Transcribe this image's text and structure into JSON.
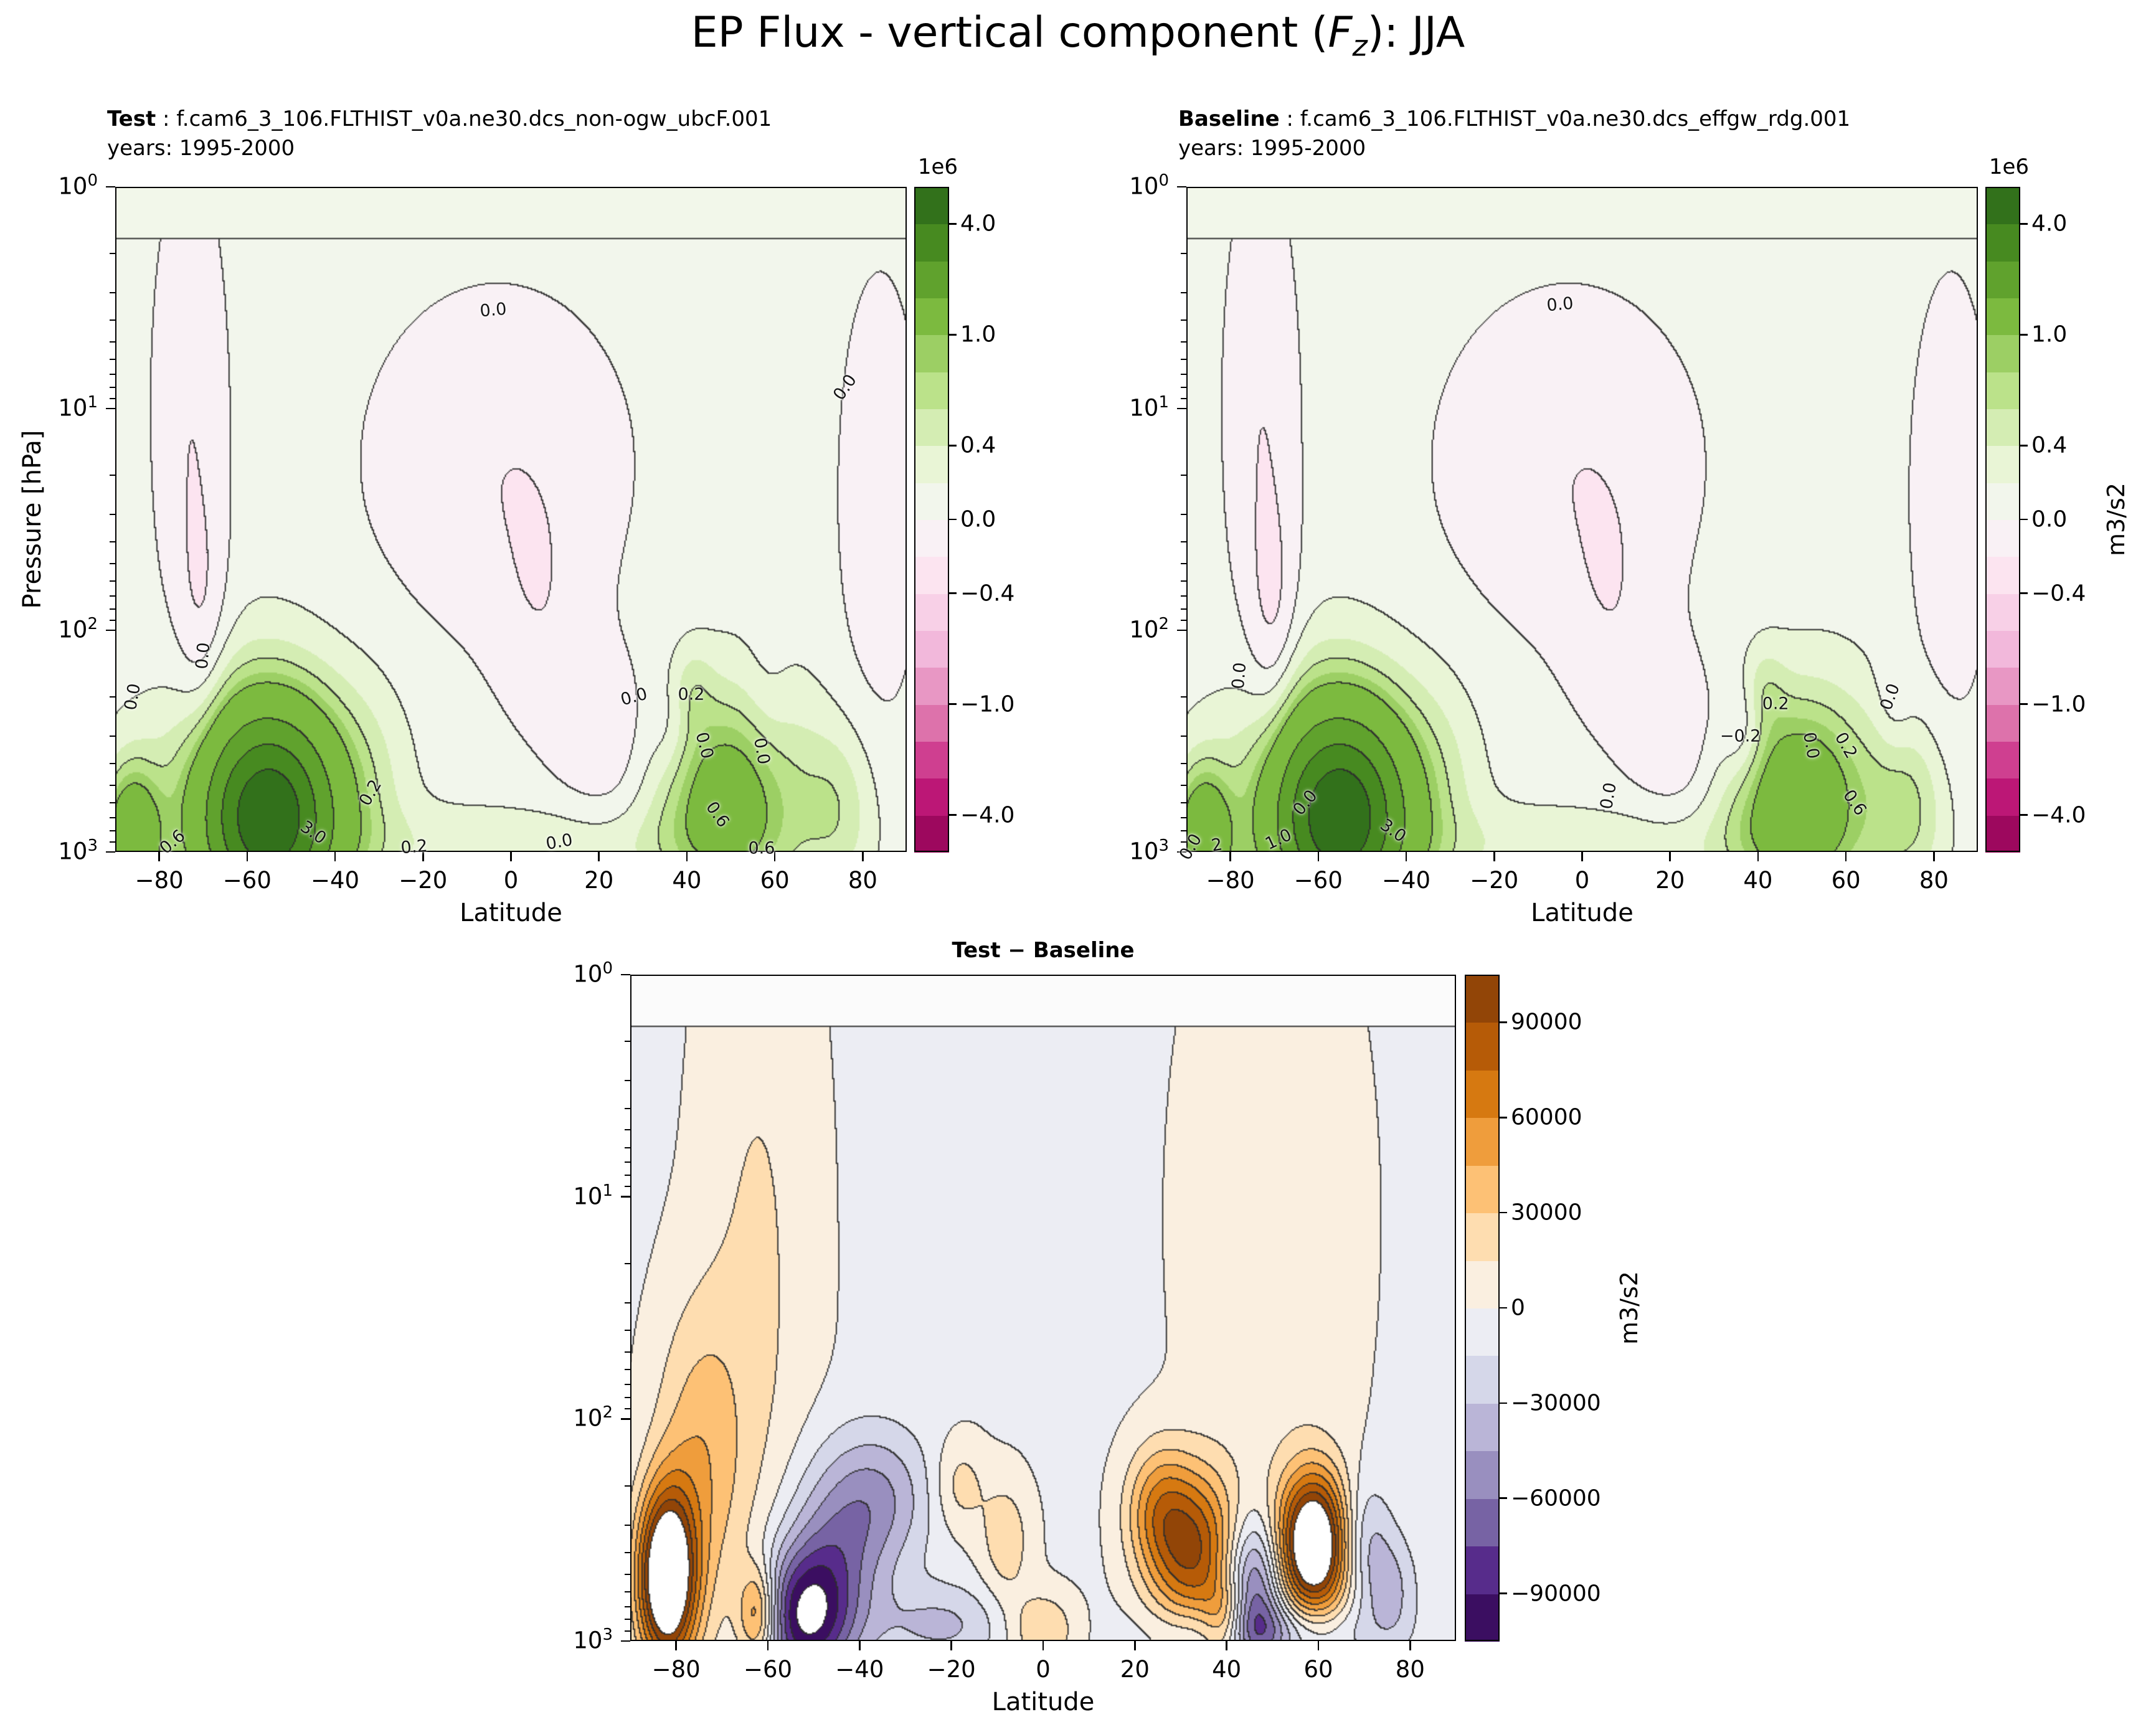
{
  "figure": {
    "title_pre": "EP Flux - vertical component (",
    "title_sym": "F",
    "title_sub": "z",
    "title_post": "): JJA"
  },
  "chart_data": [
    {
      "id": "test",
      "type": "contour",
      "title_bold": "Test",
      "title_rest": " : f.cam6_3_106.FLTHIST_v0a.ne30.dcs_non-ogw_ubcF.001",
      "title_line2": "years: 1995-2000",
      "xlabel": "Latitude",
      "ylabel": "Pressure [hPa]",
      "x_range": [
        -90,
        90
      ],
      "x_ticks": [
        -80,
        -60,
        -40,
        -20,
        0,
        20,
        40,
        60,
        80
      ],
      "x_tick_labels": [
        "−80",
        "−60",
        "−40",
        "−20",
        "0",
        "20",
        "40",
        "60",
        "80"
      ],
      "y_scale": "log",
      "y_tick_base": "10",
      "y_tick_exponents": [
        0,
        1,
        2,
        3
      ],
      "offset_label": "1e6",
      "colorbar_ticks": [
        {
          "v": 4000000,
          "label": "4.0"
        },
        {
          "v": 1000000,
          "label": "1.0"
        },
        {
          "v": 400000,
          "label": "0.4"
        },
        {
          "v": 0,
          "label": "0.0"
        },
        {
          "v": -400000,
          "label": "−0.4"
        },
        {
          "v": -1000000,
          "label": "−1.0"
        },
        {
          "v": -4000000,
          "label": "−4.0"
        }
      ],
      "levels": [
        -5000000,
        -4000000,
        -3000000,
        -2000000,
        -1000000,
        -800000,
        -600000,
        -400000,
        -200000,
        0,
        200000,
        400000,
        600000,
        800000,
        1000000,
        2000000,
        3000000,
        4000000,
        5000000
      ],
      "line_levels": [
        -200000,
        0,
        200000,
        600000,
        1000000,
        2000000,
        3000000,
        4000000
      ],
      "cmap_anchors": [
        "#8e0152",
        "#c51b7d",
        "#de77ae",
        "#f1b6da",
        "#fde0ef",
        "#f7f7f7",
        "#e6f5d0",
        "#b8e186",
        "#7fbc41",
        "#4d9221",
        "#276419"
      ],
      "out_of_range": "clamp",
      "background": 120000,
      "topband": {
        "logp": 0.235,
        "color": "#f2f7ea"
      },
      "blobs": [
        {
          "lat": -73,
          "lp": 1.0,
          "sl": 6.5,
          "sp": 0.85,
          "a": -300000
        },
        {
          "lat": -70,
          "lp": 2.1,
          "sl": 4,
          "sp": 0.45,
          "a": -260000
        },
        {
          "lat": -3,
          "lp": 1.25,
          "sl": 23,
          "sp": 0.6,
          "a": -300000
        },
        {
          "lat": 7,
          "lp": 2.0,
          "sl": 8,
          "sp": 0.4,
          "a": -170000
        },
        {
          "lat": 84,
          "lp": 1.4,
          "sl": 7,
          "sp": 0.75,
          "a": -300000
        },
        {
          "lat": 22,
          "lp": 2.5,
          "sl": 8,
          "sp": 0.28,
          "a": -280000
        },
        {
          "lat": 37,
          "lp": 2.45,
          "sl": 3.5,
          "sp": 0.18,
          "a": -200000
        },
        {
          "lat": 58,
          "lp": 2.4,
          "sl": 4,
          "sp": 0.25,
          "a": -160000
        },
        {
          "lat": -55,
          "lp": 2.85,
          "sl": 10,
          "sp": 0.3,
          "a": 4300000
        },
        {
          "lat": -57,
          "lp": 2.65,
          "sl": 15,
          "sp": 0.4,
          "a": 600000
        },
        {
          "lat": -86,
          "lp": 2.95,
          "sl": 4.5,
          "sp": 0.22,
          "a": 1500000
        },
        {
          "lat": 49,
          "lp": 2.8,
          "sl": 10,
          "sp": 0.28,
          "a": 1000000
        },
        {
          "lat": 52,
          "lp": 2.6,
          "sl": 13,
          "sp": 0.35,
          "a": 300000
        },
        {
          "lat": 41,
          "lp": 2.27,
          "sl": 3.5,
          "sp": 0.14,
          "a": 300000
        },
        {
          "lat": 74,
          "lp": 2.8,
          "sl": 6,
          "sp": 0.25,
          "a": 400000
        },
        {
          "lat": 5,
          "lp": 2.97,
          "sl": 35,
          "sp": 0.13,
          "a": 250000
        },
        {
          "lat": -32,
          "lp": 2.7,
          "sl": 7,
          "sp": 0.35,
          "a": 180000
        }
      ],
      "contour_labels": [
        {
          "text": "0.0",
          "lat": -4,
          "p": 3.6,
          "rot": -5
        },
        {
          "text": "0.0",
          "lat": 76,
          "p": 8,
          "rot": -55
        },
        {
          "text": "0.0",
          "lat": -70,
          "p": 130,
          "rot": -85
        },
        {
          "text": "0.0",
          "lat": -86,
          "p": 200,
          "rot": -80
        },
        {
          "text": "0.0",
          "lat": 28,
          "p": 200,
          "rot": -15
        },
        {
          "text": "0.0",
          "lat": 44,
          "p": 330,
          "rot": 75
        },
        {
          "text": "0.0",
          "lat": 57,
          "p": 350,
          "rot": 80
        },
        {
          "text": "0.2",
          "lat": -32,
          "p": 540,
          "rot": -60
        },
        {
          "text": "0.2",
          "lat": -22,
          "p": 950,
          "rot": -5
        },
        {
          "text": "3.0",
          "lat": -45,
          "p": 820,
          "rot": 35
        },
        {
          "text": "0.6",
          "lat": -77,
          "p": 900,
          "rot": -40
        },
        {
          "text": "0.2",
          "lat": 41,
          "p": 195,
          "rot": 0
        },
        {
          "text": "0.6",
          "lat": 47,
          "p": 680,
          "rot": 55
        },
        {
          "text": "0.0",
          "lat": 11,
          "p": 900,
          "rot": -10
        },
        {
          "text": "0.6",
          "lat": 57,
          "p": 960,
          "rot": 0
        }
      ]
    },
    {
      "id": "baseline",
      "type": "contour",
      "title_bold": "Baseline",
      "title_rest": " : f.cam6_3_106.FLTHIST_v0a.ne30.dcs_effgw_rdg.001",
      "title_line2": "years: 1995-2000",
      "xlabel": "Latitude",
      "units": "m3/s2",
      "x_range": [
        -90,
        90
      ],
      "x_ticks": [
        -80,
        -60,
        -40,
        -20,
        0,
        20,
        40,
        60,
        80
      ],
      "x_tick_labels": [
        "−80",
        "−60",
        "−40",
        "−20",
        "0",
        "20",
        "40",
        "60",
        "80"
      ],
      "y_scale": "log",
      "y_tick_base": "10",
      "y_tick_exponents": [
        0,
        1,
        2,
        3
      ],
      "offset_label": "1e6",
      "colorbar_ticks": [
        {
          "v": 4000000,
          "label": "4.0"
        },
        {
          "v": 1000000,
          "label": "1.0"
        },
        {
          "v": 400000,
          "label": "0.4"
        },
        {
          "v": 0,
          "label": "0.0"
        },
        {
          "v": -400000,
          "label": "−0.4"
        },
        {
          "v": -1000000,
          "label": "−1.0"
        },
        {
          "v": -4000000,
          "label": "−4.0"
        }
      ],
      "levels": [
        -5000000,
        -4000000,
        -3000000,
        -2000000,
        -1000000,
        -800000,
        -600000,
        -400000,
        -200000,
        0,
        200000,
        400000,
        600000,
        800000,
        1000000,
        2000000,
        3000000,
        4000000,
        5000000
      ],
      "line_levels": [
        -200000,
        0,
        200000,
        600000,
        1000000,
        2000000,
        3000000,
        4000000
      ],
      "cmap_anchors": [
        "#8e0152",
        "#c51b7d",
        "#de77ae",
        "#f1b6da",
        "#fde0ef",
        "#f7f7f7",
        "#e6f5d0",
        "#b8e186",
        "#7fbc41",
        "#4d9221",
        "#276419"
      ],
      "out_of_range": "clamp",
      "background": 120000,
      "topband": {
        "logp": 0.235,
        "color": "#f2f7ea"
      },
      "blobs": [
        {
          "lat": -73,
          "lp": 1.0,
          "sl": 6.5,
          "sp": 0.85,
          "a": -300000
        },
        {
          "lat": -70,
          "lp": 2.1,
          "sl": 4,
          "sp": 0.45,
          "a": -300000
        },
        {
          "lat": -3,
          "lp": 1.25,
          "sl": 23,
          "sp": 0.6,
          "a": -300000
        },
        {
          "lat": 7,
          "lp": 2.0,
          "sl": 8,
          "sp": 0.4,
          "a": -170000
        },
        {
          "lat": 84,
          "lp": 1.4,
          "sl": 7,
          "sp": 0.75,
          "a": -300000
        },
        {
          "lat": 22,
          "lp": 2.5,
          "sl": 8,
          "sp": 0.28,
          "a": -280000
        },
        {
          "lat": 37,
          "lp": 2.45,
          "sl": 3.5,
          "sp": 0.18,
          "a": -380000
        },
        {
          "lat": 71,
          "lp": 2.35,
          "sl": 3,
          "sp": 0.2,
          "a": -160000
        },
        {
          "lat": -55,
          "lp": 2.85,
          "sl": 10,
          "sp": 0.3,
          "a": 4300000
        },
        {
          "lat": -57,
          "lp": 2.65,
          "sl": 15,
          "sp": 0.4,
          "a": 600000
        },
        {
          "lat": -86,
          "lp": 2.95,
          "sl": 4.5,
          "sp": 0.22,
          "a": 1500000
        },
        {
          "lat": 49,
          "lp": 2.8,
          "sl": 10,
          "sp": 0.28,
          "a": 1200000
        },
        {
          "lat": 52,
          "lp": 2.6,
          "sl": 13,
          "sp": 0.35,
          "a": 300000
        },
        {
          "lat": 41,
          "lp": 2.27,
          "sl": 3.5,
          "sp": 0.14,
          "a": 320000
        },
        {
          "lat": 74,
          "lp": 2.8,
          "sl": 6,
          "sp": 0.25,
          "a": 500000
        },
        {
          "lat": 5,
          "lp": 2.97,
          "sl": 35,
          "sp": 0.13,
          "a": 250000
        },
        {
          "lat": -32,
          "lp": 2.7,
          "sl": 7,
          "sp": 0.35,
          "a": 180000
        }
      ],
      "contour_labels": [
        {
          "text": "0.0",
          "lat": -5,
          "p": 3.4,
          "rot": -5
        },
        {
          "text": "0.0",
          "lat": -78,
          "p": 160,
          "rot": -85
        },
        {
          "text": "0.0",
          "lat": -63,
          "p": 600,
          "rot": -50
        },
        {
          "text": "0.0",
          "lat": 6,
          "p": 560,
          "rot": -80
        },
        {
          "text": "−0.2",
          "lat": 36,
          "p": 300,
          "rot": 0
        },
        {
          "text": "0.0",
          "lat": 52,
          "p": 330,
          "rot": 80
        },
        {
          "text": "0.2",
          "lat": 60,
          "p": 330,
          "rot": 60
        },
        {
          "text": "0.0",
          "lat": 70,
          "p": 200,
          "rot": -70
        },
        {
          "text": "0.6",
          "lat": 62,
          "p": 600,
          "rot": 55
        },
        {
          "text": "3.0",
          "lat": -43,
          "p": 800,
          "rot": 35
        },
        {
          "text": "1.0",
          "lat": -69,
          "p": 880,
          "rot": -25
        },
        {
          "text": "2",
          "lat": -83,
          "p": 930,
          "rot": -10
        },
        {
          "text": "0.2",
          "lat": 44,
          "p": 215,
          "rot": 0
        },
        {
          "text": "0.0",
          "lat": -89,
          "p": 950,
          "rot": -60
        }
      ]
    },
    {
      "id": "diff",
      "type": "contour",
      "title_bold": "Test − Baseline",
      "xlabel": "Latitude",
      "units": "m3/s2",
      "x_range": [
        -90,
        90
      ],
      "x_ticks": [
        -80,
        -60,
        -40,
        -20,
        0,
        20,
        40,
        60,
        80
      ],
      "x_tick_labels": [
        "−80",
        "−60",
        "−40",
        "−20",
        "0",
        "20",
        "40",
        "60",
        "80"
      ],
      "y_scale": "log",
      "y_tick_base": "10",
      "y_tick_exponents": [
        0,
        1,
        2,
        3
      ],
      "colorbar_ticks": [
        {
          "v": 90000,
          "label": "90000"
        },
        {
          "v": 60000,
          "label": "60000"
        },
        {
          "v": 30000,
          "label": "30000"
        },
        {
          "v": 0,
          "label": "0"
        },
        {
          "v": -30000,
          "label": "−30000"
        },
        {
          "v": -60000,
          "label": "−60000"
        },
        {
          "v": -90000,
          "label": "−90000"
        }
      ],
      "levels": [
        -105000,
        -90000,
        -75000,
        -60000,
        -45000,
        -30000,
        -15000,
        0,
        15000,
        30000,
        45000,
        60000,
        75000,
        90000,
        105000
      ],
      "cmap_anchors": [
        "#2d004b",
        "#542788",
        "#8073ac",
        "#b2abd2",
        "#d8daeb",
        "#f7f7f7",
        "#fee0b6",
        "#fdb863",
        "#e08214",
        "#b35806",
        "#7f3b08"
      ],
      "out_of_range": "white",
      "background": -3000,
      "topband": {
        "logp": 0.235,
        "color": "#fbfbfb"
      },
      "blobs": [
        {
          "lat": -62,
          "lp": 1.3,
          "sl": 9,
          "sp": 1.2,
          "a": 20000
        },
        {
          "lat": -75,
          "lp": 2.2,
          "sl": 7,
          "sp": 0.5,
          "a": 40000
        },
        {
          "lat": 50,
          "lp": 1.1,
          "sl": 13,
          "sp": 1.0,
          "a": 16000
        },
        {
          "lat": -82,
          "lp": 2.72,
          "sl": 4.5,
          "sp": 0.28,
          "a": 150000
        },
        {
          "lat": -52,
          "lp": 2.9,
          "sl": 7,
          "sp": 0.22,
          "a": -95000
        },
        {
          "lat": -45,
          "lp": 2.6,
          "sl": 8,
          "sp": 0.3,
          "a": -45000
        },
        {
          "lat": -35,
          "lp": 2.35,
          "sl": 8,
          "sp": 0.22,
          "a": -35000
        },
        {
          "lat": -62,
          "lp": 2.88,
          "sl": 3,
          "sp": 0.15,
          "a": 70000
        },
        {
          "lat": -22,
          "lp": 2.93,
          "sl": 10,
          "sp": 0.13,
          "a": -30000
        },
        {
          "lat": -8,
          "lp": 2.55,
          "sl": 4,
          "sp": 0.2,
          "a": 28000
        },
        {
          "lat": 0,
          "lp": 2.95,
          "sl": 5,
          "sp": 0.12,
          "a": 35000
        },
        {
          "lat": 33,
          "lp": 2.6,
          "sl": 7,
          "sp": 0.26,
          "a": 90000
        },
        {
          "lat": 25,
          "lp": 2.4,
          "sl": 5,
          "sp": 0.2,
          "a": 45000
        },
        {
          "lat": 59,
          "lp": 2.57,
          "sl": 5.5,
          "sp": 0.23,
          "a": 150000
        },
        {
          "lat": 46,
          "lp": 2.75,
          "sl": 4.5,
          "sp": 0.22,
          "a": -75000
        },
        {
          "lat": 48,
          "lp": 2.96,
          "sl": 14,
          "sp": 0.1,
          "a": -45000
        },
        {
          "lat": 70,
          "lp": 2.55,
          "sl": 4,
          "sp": 0.2,
          "a": -35000
        },
        {
          "lat": 76,
          "lp": 2.78,
          "sl": 4,
          "sp": 0.18,
          "a": -30000
        },
        {
          "lat": 40,
          "lp": 2.92,
          "sl": 3.5,
          "sp": 0.12,
          "a": 55000
        },
        {
          "lat": -18,
          "lp": 2.3,
          "sl": 4,
          "sp": 0.15,
          "a": 25000
        }
      ],
      "contour_labels": []
    }
  ]
}
